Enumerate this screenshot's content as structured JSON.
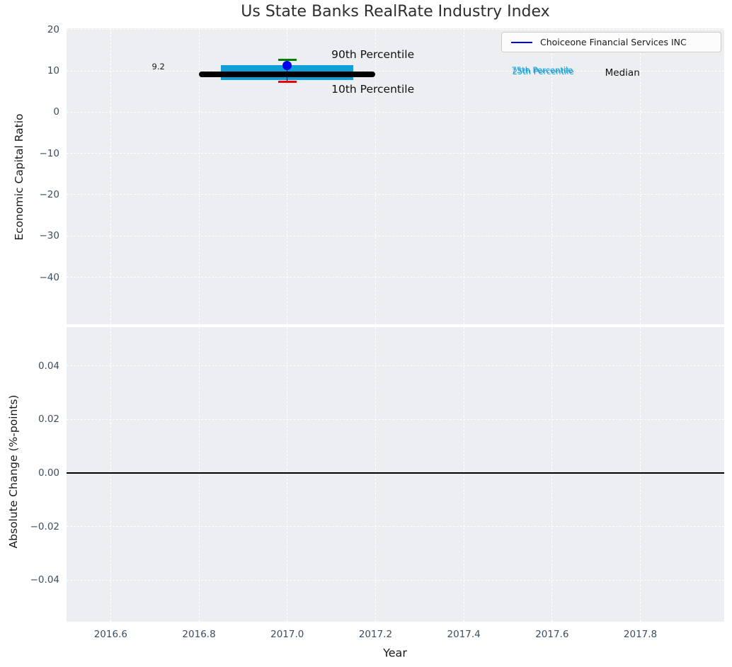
{
  "title": "Us State Banks RealRate Industry Index",
  "legend": {
    "position": "upper right",
    "entries": [
      {
        "label": "Choiceone Financial Services INC",
        "color": "#0000ee"
      }
    ]
  },
  "colors": {
    "figure_background": "#ffffff",
    "axes_background": "#eceef1",
    "grid": "#ffffff",
    "tick_label": "#3b4d63",
    "title_text": "#2e2e2e",
    "median_line": "#000000",
    "iqr_band": "#119fd8",
    "p90_cap": "#008000",
    "p10_cap": "#e8000b",
    "company_marker": "#0000ee",
    "zero_line": "#000000"
  },
  "chart_data": [
    {
      "type": "scatter",
      "title": "Us State Banks RealRate Industry Index",
      "xlabel": "",
      "ylabel": "Economic Capital Ratio",
      "xlim": [
        2016.5,
        2017.99
      ],
      "ylim": [
        -51.4,
        20.3
      ],
      "grid": "white dashed, on",
      "legend_position": "upper right",
      "show_xtick_labels": false,
      "xticks": [
        {
          "value": 2016.6,
          "label": "2016.6"
        },
        {
          "value": 2016.8,
          "label": "2016.8"
        },
        {
          "value": 2017.0,
          "label": "2017.0"
        },
        {
          "value": 2017.2,
          "label": "2017.2"
        },
        {
          "value": 2017.4,
          "label": "2017.4"
        },
        {
          "value": 2017.6,
          "label": "2017.6"
        },
        {
          "value": 2017.8,
          "label": "2017.8"
        }
      ],
      "yticks": [
        {
          "value": 20,
          "label": "20"
        },
        {
          "value": 10,
          "label": "10"
        },
        {
          "value": 0,
          "label": "0"
        },
        {
          "value": -10,
          "label": "−10"
        },
        {
          "value": -20,
          "label": "−20"
        },
        {
          "value": -30,
          "label": "−30"
        },
        {
          "value": -40,
          "label": "−40"
        }
      ],
      "series": {
        "company_point": {
          "name": "Choiceone Financial Services INC",
          "x": 2017.0,
          "y": 11.3,
          "color": "#0000ee"
        },
        "percentile_90": {
          "x": 2017.0,
          "y": 12.6,
          "color": "#008000"
        },
        "percentile_10": {
          "x": 2017.0,
          "y": 7.3,
          "color": "#e8000b"
        },
        "median_line": {
          "value": 9.2,
          "x_start": 2016.8,
          "x_end": 2017.2,
          "color": "#000000"
        },
        "iqr_band": {
          "p25": 7.8,
          "p75": 11.4,
          "x_start": 2016.85,
          "x_end": 2017.15,
          "color": "#119fd8"
        }
      },
      "annotations": [
        {
          "text": "9.2",
          "x": 2016.708,
          "y": 11.0,
          "size": 11.5,
          "color": "#1a1a1a",
          "align": "center"
        },
        {
          "text": "90th Percentile",
          "x": 2017.1,
          "y": 13.9,
          "size": 15.5,
          "color": "#111111",
          "align": "left"
        },
        {
          "text": "10th Percentile",
          "x": 2017.1,
          "y": 5.5,
          "size": 15.5,
          "color": "#111111",
          "align": "left"
        },
        {
          "text": "75th Percentile",
          "x": 2017.508,
          "y": 10.2,
          "size": 11.5,
          "color": "#119fd8",
          "align": "left"
        },
        {
          "text": "25th Percentile",
          "x": 2017.51,
          "y": 9.8,
          "size": 11.5,
          "color": "#119fd8",
          "align": "left"
        },
        {
          "text": "Median",
          "x": 2017.72,
          "y": 9.5,
          "size": 13.5,
          "color": "#111111",
          "align": "left"
        }
      ]
    },
    {
      "type": "line",
      "title": "",
      "xlabel": "Year",
      "ylabel": "Absolute Change (%-points)",
      "xlim": [
        2016.5,
        2017.99
      ],
      "ylim": [
        -0.0555,
        0.0545
      ],
      "grid": "white dashed, on",
      "show_xtick_labels": true,
      "xticks": [
        {
          "value": 2016.6,
          "label": "2016.6"
        },
        {
          "value": 2016.8,
          "label": "2016.8"
        },
        {
          "value": 2017.0,
          "label": "2017.0"
        },
        {
          "value": 2017.2,
          "label": "2017.2"
        },
        {
          "value": 2017.4,
          "label": "2017.4"
        },
        {
          "value": 2017.6,
          "label": "2017.6"
        },
        {
          "value": 2017.8,
          "label": "2017.8"
        }
      ],
      "yticks": [
        {
          "value": 0.04,
          "label": "0.04"
        },
        {
          "value": 0.02,
          "label": "0.02"
        },
        {
          "value": 0.0,
          "label": "0.00"
        },
        {
          "value": -0.02,
          "label": "−0.02"
        },
        {
          "value": -0.04,
          "label": "−0.04"
        }
      ],
      "series": {
        "zero_line": {
          "y": 0.0,
          "color": "#000000"
        }
      }
    }
  ]
}
